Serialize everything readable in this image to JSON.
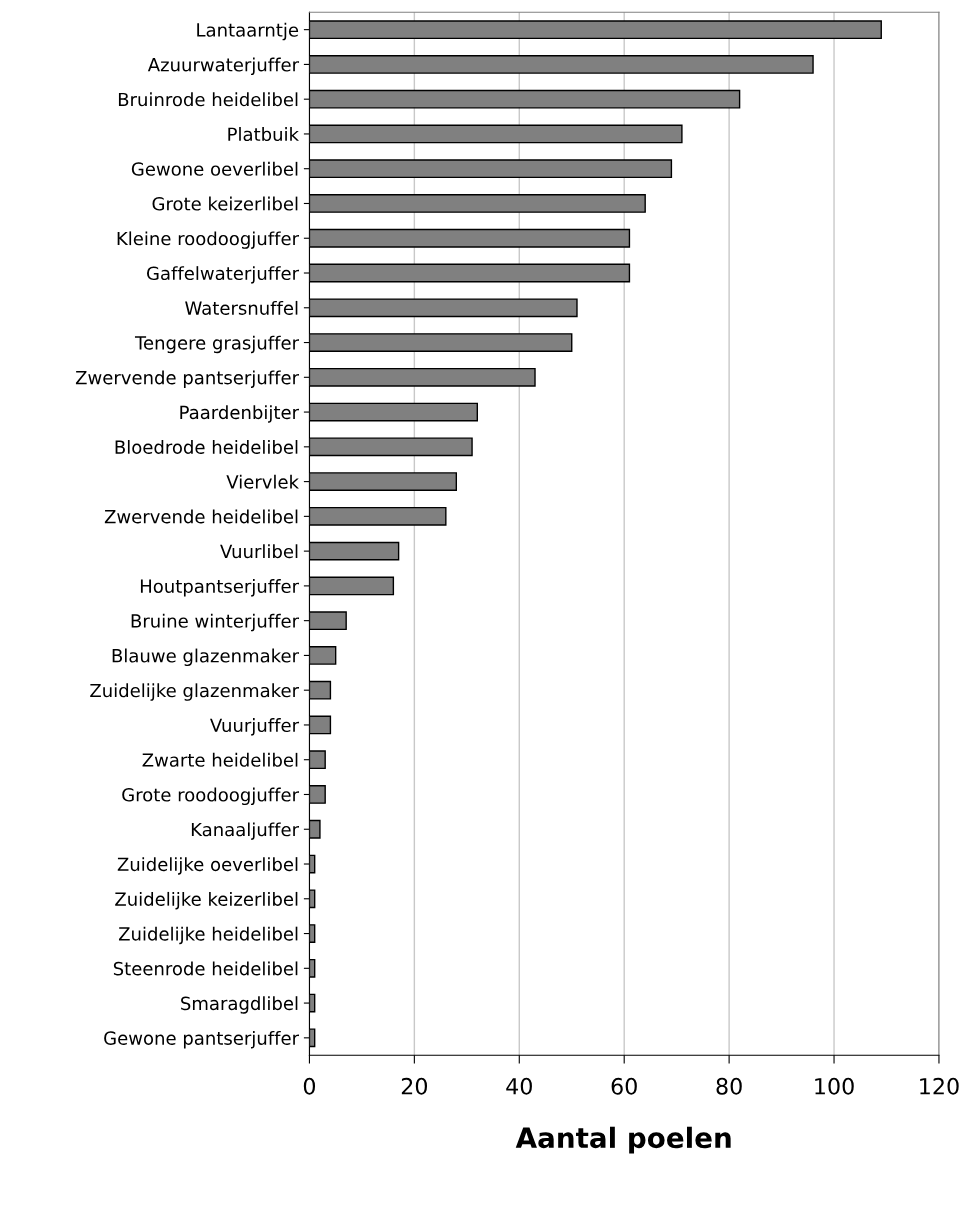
{
  "chart_data": {
    "type": "bar",
    "orientation": "horizontal",
    "xlabel": "Aantal poelen",
    "categories": [
      "Lantaarntje",
      "Azuurwaterjuffer",
      "Bruinrode heidelibel",
      "Platbuik",
      "Gewone oeverlibel",
      "Grote keizerlibel",
      "Kleine roodoogjuffer",
      "Gaffelwaterjuffer",
      "Watersnuffel",
      "Tengere grasjuffer",
      "Zwervende pantserjuffer",
      "Paardenbijter",
      "Bloedrode heidelibel",
      "Viervlek",
      "Zwervende heidelibel",
      "Vuurlibel",
      "Houtpantserjuffer",
      "Bruine winterjuffer",
      "Blauwe glazenmaker",
      "Zuidelijke glazenmaker",
      "Vuurjuffer",
      "Zwarte heidelibel",
      "Grote roodoogjuffer",
      "Kanaaljuffer",
      "Zuidelijke oeverlibel",
      "Zuidelijke keizerlibel",
      "Zuidelijke heidelibel",
      "Steenrode heidelibel",
      "Smaragdlibel",
      "Gewone pantserjuffer"
    ],
    "values": [
      109,
      96,
      82,
      71,
      69,
      64,
      61,
      61,
      51,
      50,
      43,
      32,
      31,
      28,
      26,
      17,
      16,
      7,
      5,
      4,
      4,
      3,
      3,
      2,
      1,
      1,
      1,
      1,
      1,
      1
    ],
    "color": "#808080",
    "xlim": [
      0,
      120
    ],
    "xticks": [
      0,
      20,
      40,
      60,
      80,
      100,
      120
    ],
    "grid": "x",
    "legend": false
  }
}
